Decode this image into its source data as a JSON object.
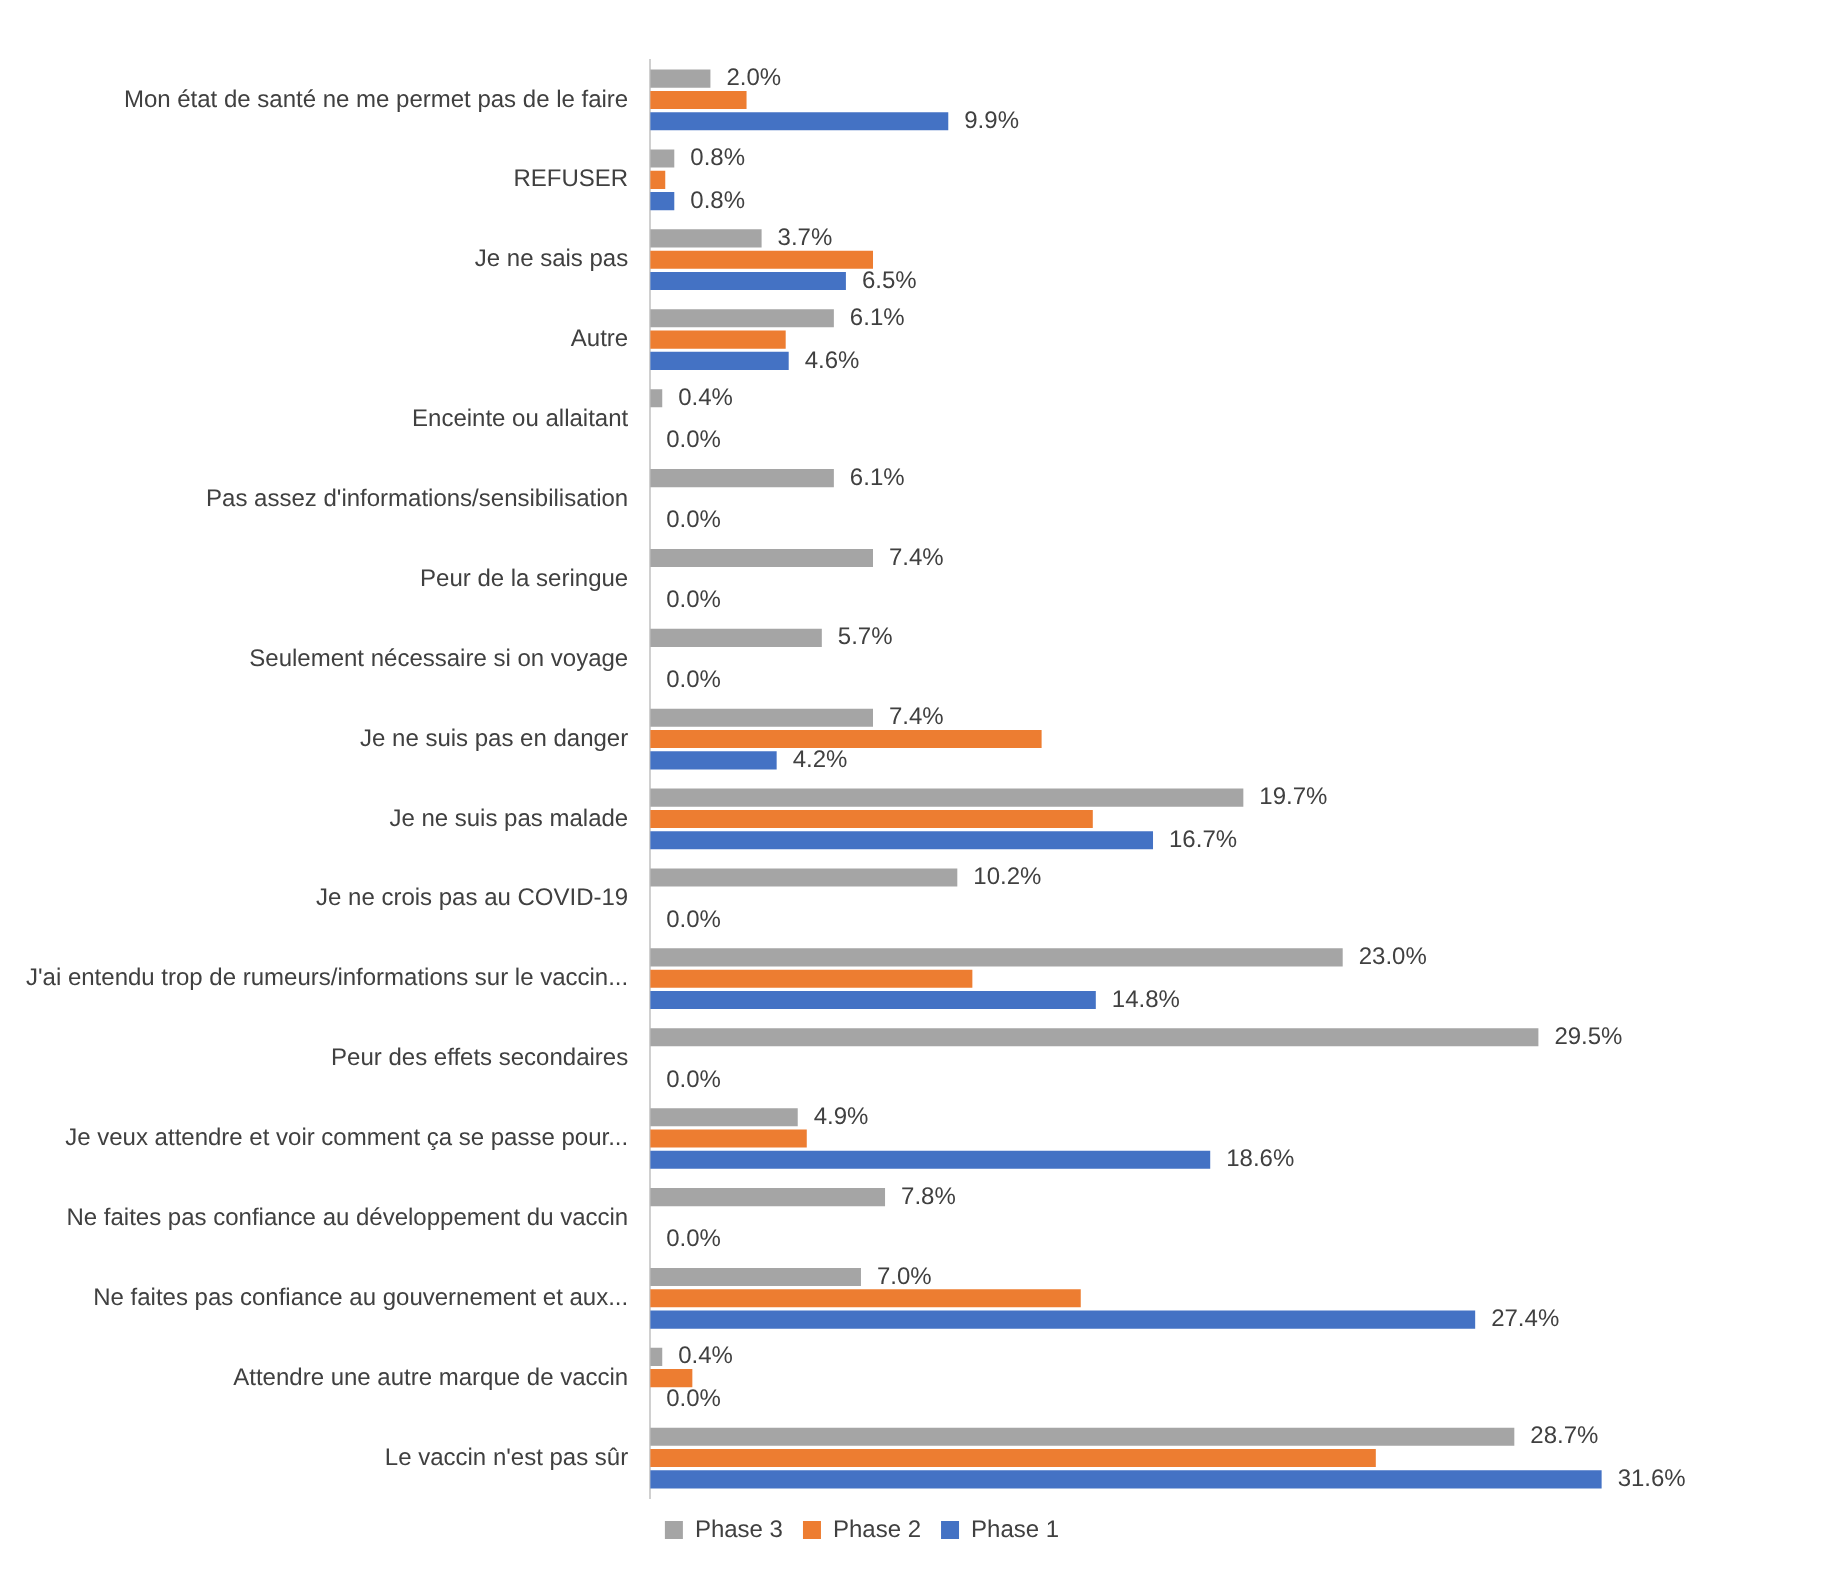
{
  "chart_data": {
    "type": "bar",
    "orientation": "horizontal",
    "legend": "bottom",
    "categories": [
      "Mon état de santé ne me permet pas de le faire",
      "REFUSER",
      "Je ne sais pas",
      "Autre",
      "Enceinte ou allaitant",
      "Pas assez d'informations/sensibilisation",
      "Peur de la seringue",
      "Seulement nécessaire si on voyage",
      "Je ne suis pas en danger",
      "Je ne suis pas malade",
      "Je ne crois pas au COVID-19",
      "J'ai entendu trop de rumeurs/informations sur le vaccin...",
      "Peur des effets secondaires",
      "Je veux attendre et voir comment ça se passe pour...",
      "Ne faites pas confiance au développement du vaccin",
      "Ne faites pas confiance au gouvernement et aux...",
      "Attendre une autre marque de vaccin",
      "Le vaccin n'est pas sûr"
    ],
    "series": [
      {
        "name": "Phase 3",
        "color": "#a5a5a5",
        "values": [
          2.0,
          0.8,
          3.7,
          6.1,
          0.4,
          6.1,
          7.4,
          5.7,
          7.4,
          19.7,
          10.2,
          23.0,
          29.5,
          4.9,
          7.8,
          7.0,
          0.4,
          28.7
        ],
        "value_labels": [
          "2.0%",
          "0.8%",
          "3.7%",
          "6.1%",
          "0.4%",
          "6.1%",
          "7.4%",
          "5.7%",
          "7.4%",
          "19.7%",
          "10.2%",
          "23.0%",
          "29.5%",
          "4.9%",
          "7.8%",
          "7.0%",
          "0.4%",
          "28.7%"
        ]
      },
      {
        "name": "Phase 2",
        "color": "#ed7d31",
        "values": [
          3.2,
          0.5,
          7.4,
          4.5,
          0,
          0,
          0,
          0,
          13.0,
          14.7,
          0,
          10.7,
          0,
          5.2,
          0,
          14.3,
          1.4,
          24.1
        ]
      },
      {
        "name": "Phase 1",
        "color": "#4472c4",
        "values": [
          9.9,
          0.8,
          6.5,
          4.6,
          0.0,
          0.0,
          0.0,
          0.0,
          4.2,
          16.7,
          0.0,
          14.8,
          0.0,
          18.6,
          0.0,
          27.4,
          0.0,
          31.6
        ],
        "value_labels": [
          "9.9%",
          "0.8%",
          "6.5%",
          "4.6%",
          "0.0%",
          "0.0%",
          "0.0%",
          "0.0%",
          "4.2%",
          "16.7%",
          "0.0%",
          "14.8%",
          "0.0%",
          "18.6%",
          "0.0%",
          "27.4%",
          "0.0%",
          "31.6%"
        ]
      }
    ]
  }
}
